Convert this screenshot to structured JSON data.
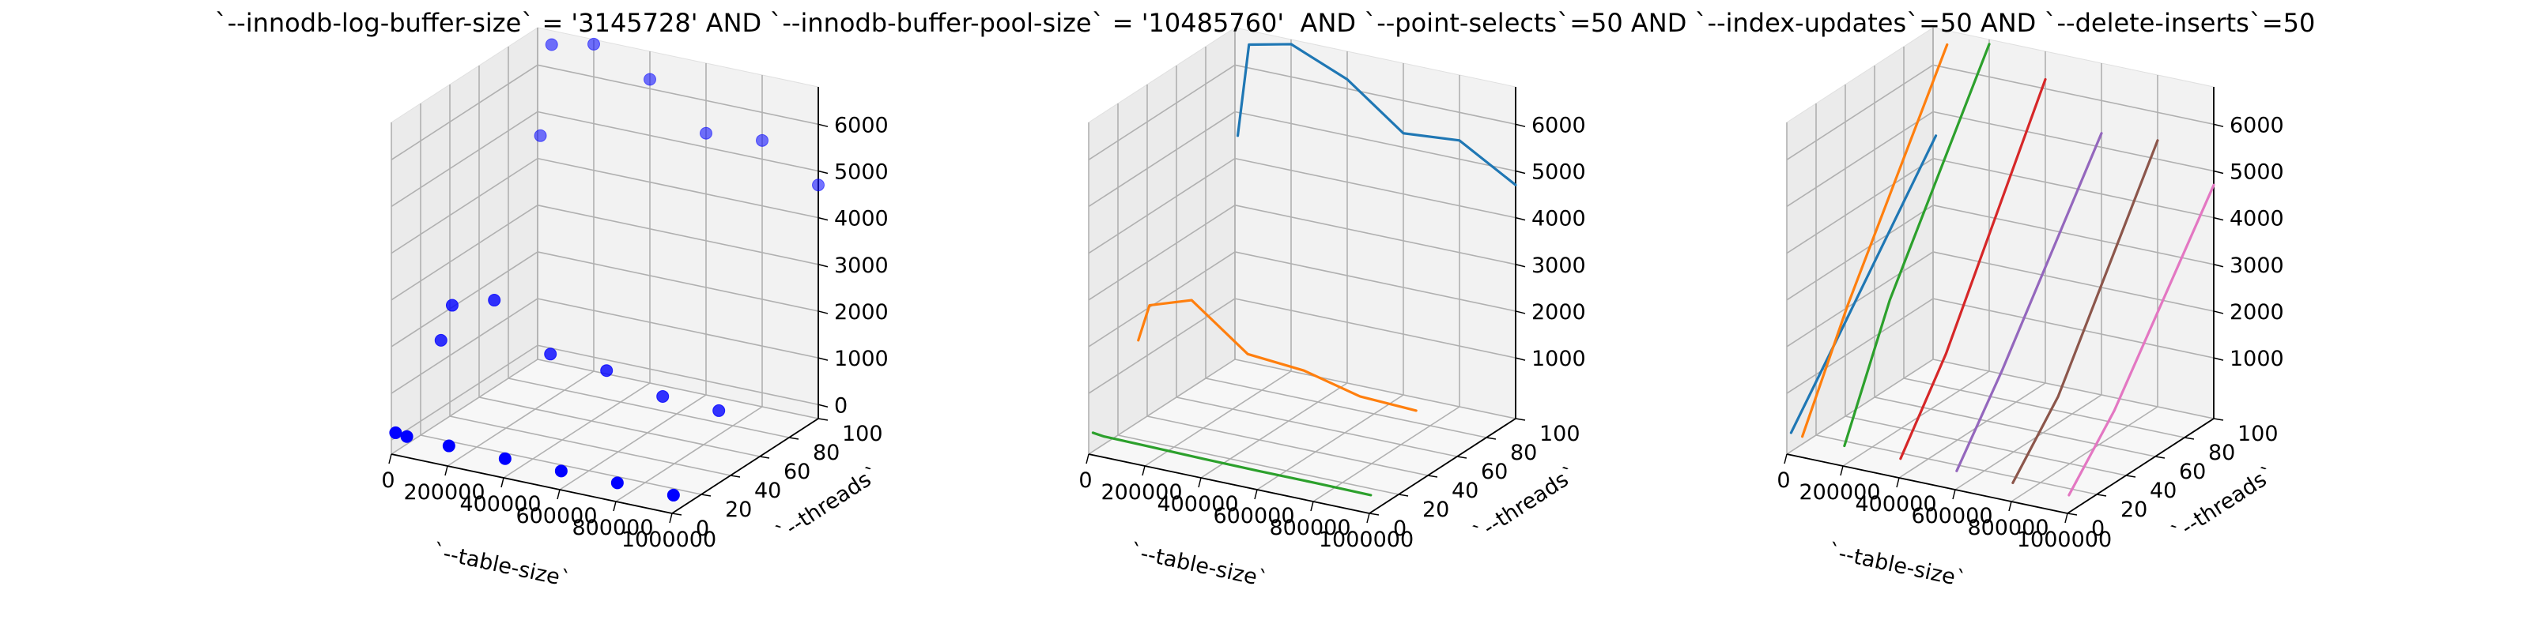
{
  "figure": {
    "title": "`--innodb-log-buffer-size` = '3145728' AND `--innodb-buffer-pool-size` = '10485760'  AND `--point-selects`=50 AND `--index-updates`=50 AND `--delete-inserts`=50"
  },
  "chart_data": [
    {
      "type": "scatter",
      "projection": "3d",
      "xlabel": "`--table-size`",
      "ylabel": "`--threads`",
      "zlabel": "",
      "x_ticks": [
        "0",
        "200000",
        "400000",
        "600000",
        "800000",
        "1000000"
      ],
      "y_ticks": [
        "0",
        "20",
        "40",
        "60",
        "80",
        "100"
      ],
      "z_ticks": [
        "0",
        "1000",
        "2000",
        "3000",
        "4000",
        "5000",
        "6000"
      ],
      "xlim": [
        0,
        1000000
      ],
      "ylim": [
        0,
        100
      ],
      "zlim": [
        -300,
        6800
      ],
      "grid": true,
      "marker_color": "#0000ff",
      "points": [
        {
          "x": 10000,
          "y": 1,
          "z": 150
        },
        {
          "x": 50000,
          "y": 1,
          "z": 120
        },
        {
          "x": 200000,
          "y": 1,
          "z": 110
        },
        {
          "x": 400000,
          "y": 1,
          "z": 90
        },
        {
          "x": 600000,
          "y": 1,
          "z": 80
        },
        {
          "x": 800000,
          "y": 1,
          "z": 80
        },
        {
          "x": 1000000,
          "y": 1,
          "z": 70
        },
        {
          "x": 10000,
          "y": 32,
          "z": 1500
        },
        {
          "x": 50000,
          "y": 32,
          "z": 2300
        },
        {
          "x": 200000,
          "y": 32,
          "z": 2600
        },
        {
          "x": 400000,
          "y": 32,
          "z": 1700
        },
        {
          "x": 600000,
          "y": 32,
          "z": 1600
        },
        {
          "x": 800000,
          "y": 32,
          "z": 1300
        },
        {
          "x": 1000000,
          "y": 32,
          "z": 1250
        },
        {
          "x": 10000,
          "y": 100,
          "z": 4500
        },
        {
          "x": 50000,
          "y": 100,
          "z": 6500
        },
        {
          "x": 200000,
          "y": 100,
          "z": 6700
        },
        {
          "x": 400000,
          "y": 100,
          "z": 6200
        },
        {
          "x": 600000,
          "y": 100,
          "z": 5300
        },
        {
          "x": 800000,
          "y": 100,
          "z": 5400
        },
        {
          "x": 1000000,
          "y": 100,
          "z": 4700
        }
      ]
    },
    {
      "type": "line",
      "projection": "3d",
      "xlabel": "`--table-size`",
      "ylabel": "`--threads`",
      "zlabel": "",
      "x_ticks": [
        "0",
        "200000",
        "400000",
        "600000",
        "800000",
        "1000000"
      ],
      "y_ticks": [
        "0",
        "20",
        "40",
        "60",
        "80",
        "100"
      ],
      "z_ticks": [
        "1000",
        "2000",
        "3000",
        "4000",
        "5000",
        "6000"
      ],
      "xlim": [
        0,
        1000000
      ],
      "ylim": [
        0,
        100
      ],
      "zlim": [
        -300,
        6800
      ],
      "grid": true,
      "series": [
        {
          "color": "#1f77b4",
          "points": [
            {
              "x": 10000,
              "y": 100,
              "z": 4500
            },
            {
              "x": 50000,
              "y": 100,
              "z": 6500
            },
            {
              "x": 200000,
              "y": 100,
              "z": 6700
            },
            {
              "x": 400000,
              "y": 100,
              "z": 6200
            },
            {
              "x": 600000,
              "y": 100,
              "z": 5300
            },
            {
              "x": 800000,
              "y": 100,
              "z": 5400
            },
            {
              "x": 1000000,
              "y": 100,
              "z": 4700
            }
          ]
        },
        {
          "color": "#ff7f0e",
          "points": [
            {
              "x": 10000,
              "y": 32,
              "z": 1500
            },
            {
              "x": 50000,
              "y": 32,
              "z": 2300
            },
            {
              "x": 200000,
              "y": 32,
              "z": 2600
            },
            {
              "x": 400000,
              "y": 32,
              "z": 1700
            },
            {
              "x": 600000,
              "y": 32,
              "z": 1600
            },
            {
              "x": 800000,
              "y": 32,
              "z": 1300
            },
            {
              "x": 1000000,
              "y": 32,
              "z": 1250
            }
          ]
        },
        {
          "color": "#2ca02c",
          "points": [
            {
              "x": 10000,
              "y": 1,
              "z": 150
            },
            {
              "x": 50000,
              "y": 1,
              "z": 120
            },
            {
              "x": 200000,
              "y": 1,
              "z": 110
            },
            {
              "x": 400000,
              "y": 1,
              "z": 90
            },
            {
              "x": 600000,
              "y": 1,
              "z": 80
            },
            {
              "x": 800000,
              "y": 1,
              "z": 80
            },
            {
              "x": 1000000,
              "y": 1,
              "z": 70
            }
          ]
        }
      ]
    },
    {
      "type": "line",
      "projection": "3d",
      "xlabel": "`--table-size`",
      "ylabel": "`--threads`",
      "zlabel": "",
      "x_ticks": [
        "0",
        "200000",
        "400000",
        "600000",
        "800000",
        "1000000"
      ],
      "y_ticks": [
        "0",
        "20",
        "40",
        "60",
        "80",
        "100"
      ],
      "z_ticks": [
        "1000",
        "2000",
        "3000",
        "4000",
        "5000",
        "6000"
      ],
      "xlim": [
        0,
        1000000
      ],
      "ylim": [
        0,
        100
      ],
      "zlim": [
        -300,
        6800
      ],
      "grid": true,
      "series": [
        {
          "color": "#1f77b4",
          "points": [
            {
              "x": 10000,
              "y": 1,
              "z": 150
            },
            {
              "x": 10000,
              "y": 32,
              "z": 1500
            },
            {
              "x": 10000,
              "y": 100,
              "z": 4500
            }
          ]
        },
        {
          "color": "#ff7f0e",
          "points": [
            {
              "x": 50000,
              "y": 1,
              "z": 120
            },
            {
              "x": 50000,
              "y": 32,
              "z": 2300
            },
            {
              "x": 50000,
              "y": 100,
              "z": 6500
            }
          ]
        },
        {
          "color": "#2ca02c",
          "points": [
            {
              "x": 200000,
              "y": 1,
              "z": 110
            },
            {
              "x": 200000,
              "y": 32,
              "z": 2600
            },
            {
              "x": 200000,
              "y": 100,
              "z": 6700
            }
          ]
        },
        {
          "color": "#d62728",
          "points": [
            {
              "x": 400000,
              "y": 1,
              "z": 90
            },
            {
              "x": 400000,
              "y": 32,
              "z": 1700
            },
            {
              "x": 400000,
              "y": 100,
              "z": 6200
            }
          ]
        },
        {
          "color": "#9467bd",
          "points": [
            {
              "x": 600000,
              "y": 1,
              "z": 80
            },
            {
              "x": 600000,
              "y": 32,
              "z": 1600
            },
            {
              "x": 600000,
              "y": 100,
              "z": 5300
            }
          ]
        },
        {
          "color": "#8c564b",
          "points": [
            {
              "x": 800000,
              "y": 1,
              "z": 80
            },
            {
              "x": 800000,
              "y": 32,
              "z": 1300
            },
            {
              "x": 800000,
              "y": 100,
              "z": 5400
            }
          ]
        },
        {
          "color": "#e377c2",
          "points": [
            {
              "x": 1000000,
              "y": 1,
              "z": 70
            },
            {
              "x": 1000000,
              "y": 32,
              "z": 1250
            },
            {
              "x": 1000000,
              "y": 100,
              "z": 4700
            }
          ]
        }
      ]
    }
  ]
}
